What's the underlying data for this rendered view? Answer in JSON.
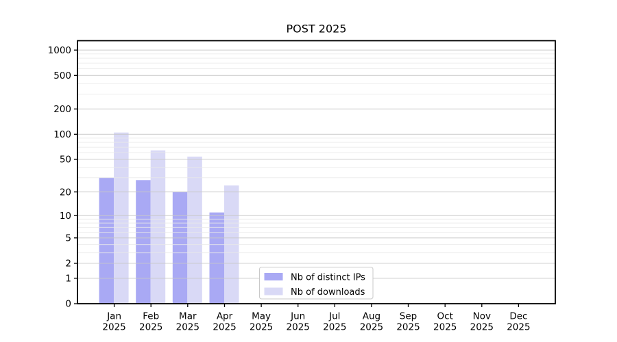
{
  "chart_data": {
    "type": "bar",
    "title": "POST 2025",
    "categories": [
      "Jan 2025",
      "Feb 2025",
      "Mar 2025",
      "Apr 2025",
      "May 2025",
      "Jun 2025",
      "Jul 2025",
      "Aug 2025",
      "Sep 2025",
      "Oct 2025",
      "Nov 2025",
      "Dec 2025"
    ],
    "x_tick_months": [
      "Jan",
      "Feb",
      "Mar",
      "Apr",
      "May",
      "Jun",
      "Jul",
      "Aug",
      "Sep",
      "Oct",
      "Nov",
      "Dec"
    ],
    "x_tick_year": "2025",
    "series": [
      {
        "name": "Nb of distinct IPs",
        "color": "#a9a9f4",
        "values": [
          30,
          28,
          20,
          11,
          0,
          0,
          0,
          0,
          0,
          0,
          0,
          0
        ]
      },
      {
        "name": "Nb of downloads",
        "color": "#d9d9f6",
        "values": [
          105,
          64,
          54,
          24,
          0,
          0,
          0,
          0,
          0,
          0,
          0,
          0
        ]
      }
    ],
    "xlabel": "",
    "ylabel": "",
    "y_axis": {
      "scale": "log10(1+value)",
      "ticks": [
        0,
        1,
        2,
        5,
        10,
        20,
        50,
        100,
        200,
        500,
        1000
      ],
      "tick_labels": [
        "0",
        "1",
        "2",
        "5",
        "10",
        "20",
        "50",
        "100",
        "200",
        "500",
        "1000"
      ],
      "minor_gridlines": [
        3,
        4,
        6,
        7,
        8,
        9,
        30,
        40,
        60,
        70,
        80,
        90,
        300,
        400,
        600,
        700,
        800,
        900
      ],
      "ylim": [
        0,
        1290
      ]
    },
    "legend": {
      "position": "lower center inside plot",
      "entries": [
        "Nb of distinct IPs",
        "Nb of downloads"
      ]
    },
    "grid": "horizontal major+minor, drawn above bars",
    "colors": {
      "background": "#ffffff",
      "axis": "#000000",
      "text": "#000000",
      "grid_major": "#c8c8c8",
      "grid_minor": "#e8e8e8",
      "legend_border": "#c9c9c9",
      "legend_background": "#ffffff"
    }
  }
}
